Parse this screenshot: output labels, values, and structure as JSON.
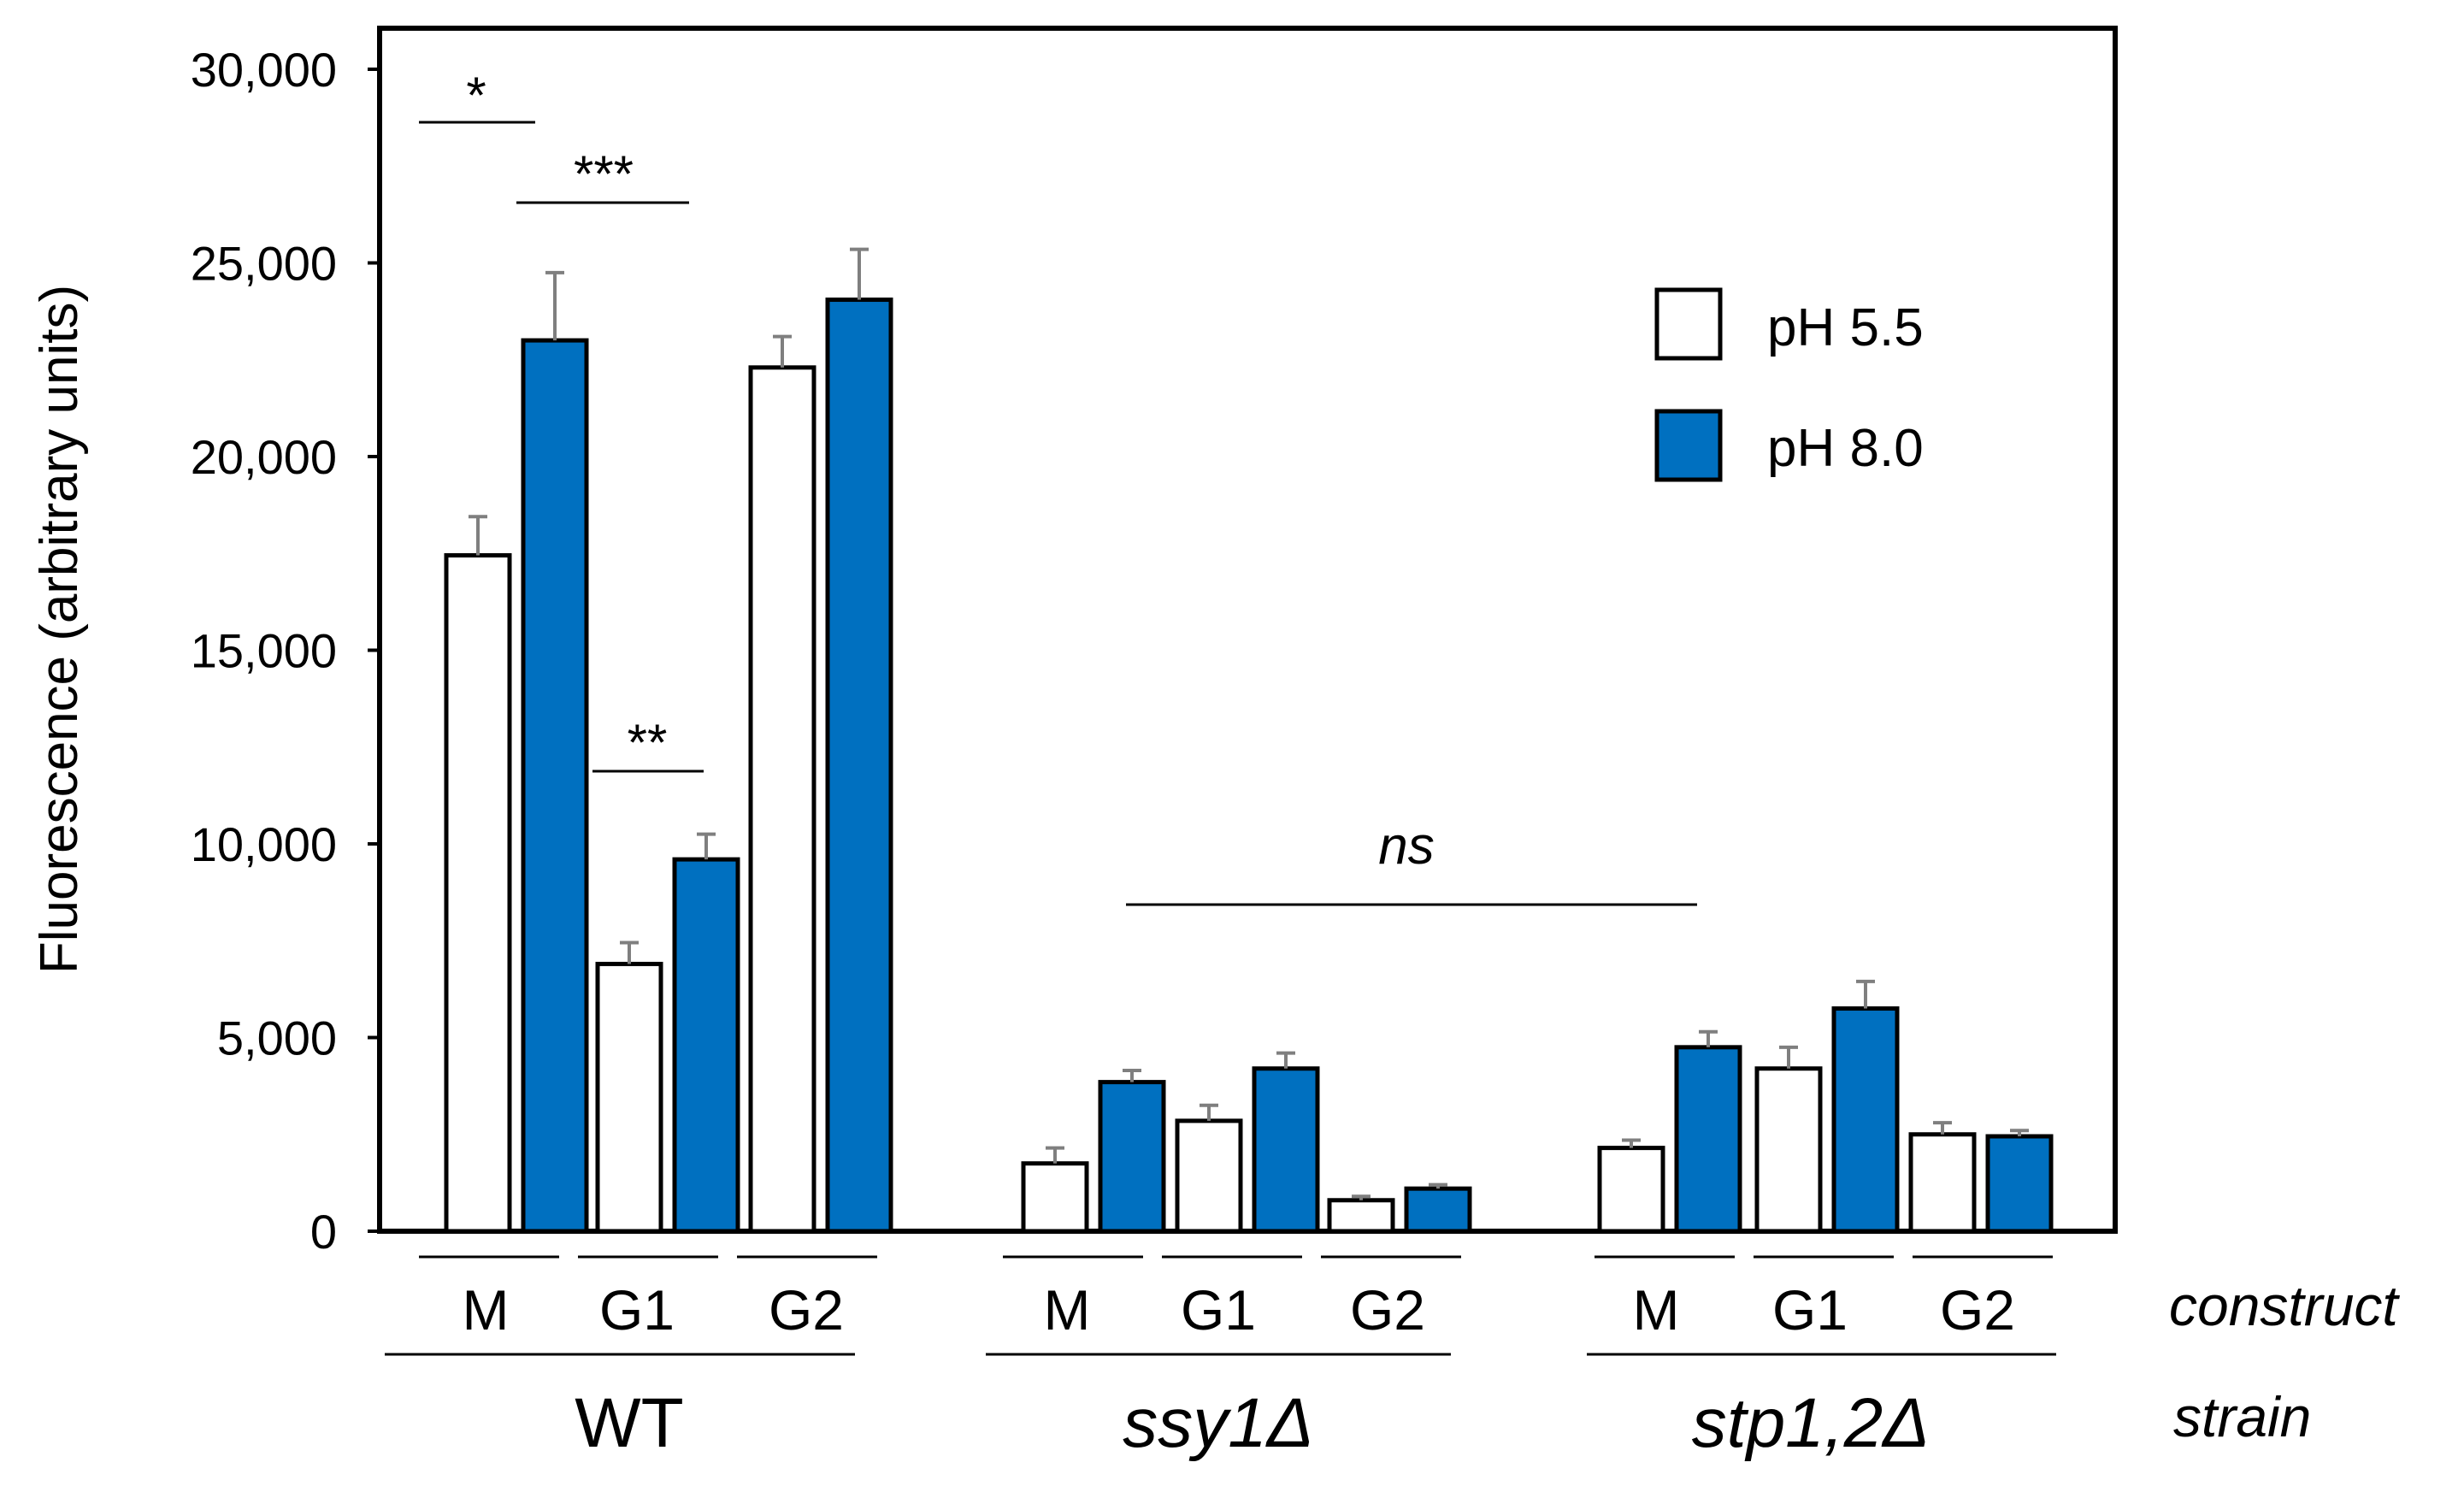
{
  "chart_data": {
    "type": "bar",
    "ylabel": "Fluorescence (arbitrary units)",
    "ylim": [
      0,
      30000
    ],
    "yticks": [
      0,
      5000,
      10000,
      15000,
      20000,
      25000,
      30000
    ],
    "ytick_labels": [
      "0",
      "5,000",
      "10,000",
      "15,000",
      "20,000",
      "25,000",
      "30,000"
    ],
    "grid": false,
    "legend": {
      "position": "top-right",
      "entries": [
        {
          "label": "pH 5.5",
          "color": "#ffffff"
        },
        {
          "label": "pH 8.0",
          "color": "#0070c0"
        }
      ]
    },
    "construct_label": "construct",
    "strain_label": "strain",
    "strains": [
      "WT",
      "ssy1Δ",
      "stp1,2Δ"
    ],
    "constructs": [
      "M",
      "G1",
      "G2"
    ],
    "categories": [
      "WT M",
      "WT G1",
      "WT G2",
      "ssy1Δ M",
      "ssy1Δ G1",
      "ssy1Δ G2",
      "stp1,2Δ M",
      "stp1,2Δ G1",
      "stp1,2Δ G2"
    ],
    "series": [
      {
        "name": "pH 5.5",
        "color": "#ffffff",
        "values": [
          17450,
          6900,
          22300,
          1750,
          2850,
          800,
          2150,
          4200,
          2500
        ],
        "errors": [
          1000,
          550,
          800,
          400,
          400,
          100,
          200,
          550,
          300
        ]
      },
      {
        "name": "pH 8.0",
        "color": "#0070c0",
        "values": [
          23000,
          9600,
          24050,
          3850,
          4200,
          1100,
          4750,
          5750,
          2450
        ],
        "errors": [
          1750,
          650,
          1300,
          300,
          400,
          100,
          400,
          700,
          150
        ]
      }
    ],
    "annotations": [
      {
        "text": "*",
        "between": "WT M pH 5.5 vs WT M pH 8.0"
      },
      {
        "text": "***",
        "between": "WT M pH 8.0 vs WT G1 pH 5.5"
      },
      {
        "text": "**",
        "between": "WT G1 pH 5.5 vs WT G1 pH 8.0"
      },
      {
        "text": "ns",
        "between": "ssy1Δ vs stp1,2Δ"
      }
    ]
  }
}
